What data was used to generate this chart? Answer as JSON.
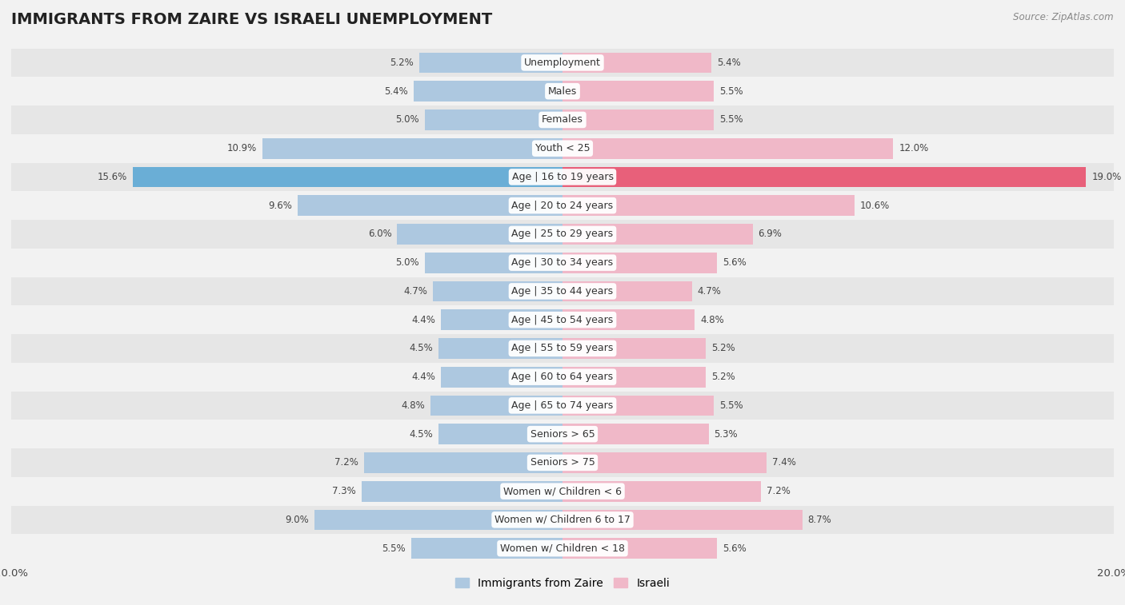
{
  "title": "IMMIGRANTS FROM ZAIRE VS ISRAELI UNEMPLOYMENT",
  "source": "Source: ZipAtlas.com",
  "categories": [
    "Unemployment",
    "Males",
    "Females",
    "Youth < 25",
    "Age | 16 to 19 years",
    "Age | 20 to 24 years",
    "Age | 25 to 29 years",
    "Age | 30 to 34 years",
    "Age | 35 to 44 years",
    "Age | 45 to 54 years",
    "Age | 55 to 59 years",
    "Age | 60 to 64 years",
    "Age | 65 to 74 years",
    "Seniors > 65",
    "Seniors > 75",
    "Women w/ Children < 6",
    "Women w/ Children 6 to 17",
    "Women w/ Children < 18"
  ],
  "zaire_values": [
    5.2,
    5.4,
    5.0,
    10.9,
    15.6,
    9.6,
    6.0,
    5.0,
    4.7,
    4.4,
    4.5,
    4.4,
    4.8,
    4.5,
    7.2,
    7.3,
    9.0,
    5.5
  ],
  "israeli_values": [
    5.4,
    5.5,
    5.5,
    12.0,
    19.0,
    10.6,
    6.9,
    5.6,
    4.7,
    4.8,
    5.2,
    5.2,
    5.5,
    5.3,
    7.4,
    7.2,
    8.7,
    5.6
  ],
  "zaire_color": "#adc8e0",
  "israeli_color": "#f0b8c8",
  "highlight_zaire_color": "#6aaed6",
  "highlight_israeli_color": "#e8607a",
  "highlight_rows": [
    4
  ],
  "xlim": 20.0,
  "bar_height": 0.72,
  "background_color": "#f2f2f2",
  "row_bg_light": "#f2f2f2",
  "row_bg_dark": "#e6e6e6",
  "title_fontsize": 14,
  "label_fontsize": 9,
  "value_fontsize": 8.5,
  "legend_fontsize": 10
}
